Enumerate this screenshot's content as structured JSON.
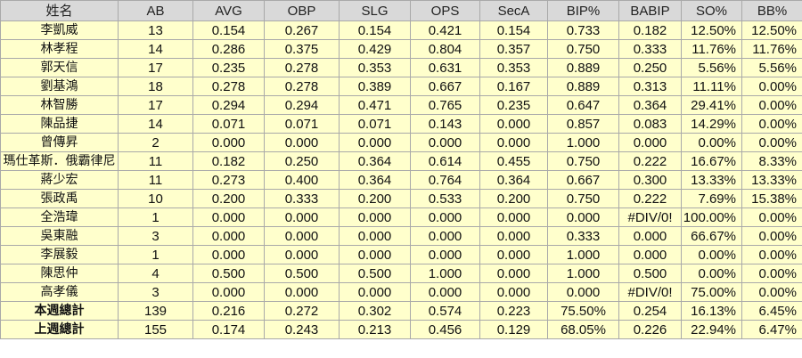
{
  "table": {
    "headers": [
      "姓名",
      "AB",
      "AVG",
      "OBP",
      "SLG",
      "OPS",
      "SecA",
      "BIP%",
      "BABIP",
      "SO%",
      "BB%"
    ],
    "rows": [
      [
        "李凱威",
        "13",
        "0.154",
        "0.267",
        "0.154",
        "0.421",
        "0.154",
        "0.733",
        "0.182",
        "12.50%",
        "12.50%"
      ],
      [
        "林孝程",
        "14",
        "0.286",
        "0.375",
        "0.429",
        "0.804",
        "0.357",
        "0.750",
        "0.333",
        "11.76%",
        "11.76%"
      ],
      [
        "郭天信",
        "17",
        "0.235",
        "0.278",
        "0.353",
        "0.631",
        "0.353",
        "0.889",
        "0.250",
        "5.56%",
        "5.56%"
      ],
      [
        "劉基鴻",
        "18",
        "0.278",
        "0.278",
        "0.389",
        "0.667",
        "0.167",
        "0.889",
        "0.313",
        "11.11%",
        "0.00%"
      ],
      [
        "林智勝",
        "17",
        "0.294",
        "0.294",
        "0.471",
        "0.765",
        "0.235",
        "0.647",
        "0.364",
        "29.41%",
        "0.00%"
      ],
      [
        "陳品捷",
        "14",
        "0.071",
        "0.071",
        "0.071",
        "0.143",
        "0.000",
        "0.857",
        "0.083",
        "14.29%",
        "0.00%"
      ],
      [
        "曾傳昇",
        "2",
        "0.000",
        "0.000",
        "0.000",
        "0.000",
        "0.000",
        "1.000",
        "0.000",
        "0.00%",
        "0.00%"
      ],
      [
        "瑪仕革斯．俄霸律尼",
        "11",
        "0.182",
        "0.250",
        "0.364",
        "0.614",
        "0.455",
        "0.750",
        "0.222",
        "16.67%",
        "8.33%"
      ],
      [
        "蔣少宏",
        "11",
        "0.273",
        "0.400",
        "0.364",
        "0.764",
        "0.364",
        "0.667",
        "0.300",
        "13.33%",
        "13.33%"
      ],
      [
        "張政禹",
        "10",
        "0.200",
        "0.333",
        "0.200",
        "0.533",
        "0.200",
        "0.750",
        "0.222",
        "7.69%",
        "15.38%"
      ],
      [
        "全浩瑋",
        "1",
        "0.000",
        "0.000",
        "0.000",
        "0.000",
        "0.000",
        "0.000",
        "#DIV/0!",
        "100.00%",
        "0.00%"
      ],
      [
        "吳東融",
        "3",
        "0.000",
        "0.000",
        "0.000",
        "0.000",
        "0.000",
        "0.333",
        "0.000",
        "66.67%",
        "0.00%"
      ],
      [
        "李展毅",
        "1",
        "0.000",
        "0.000",
        "0.000",
        "0.000",
        "0.000",
        "1.000",
        "0.000",
        "0.00%",
        "0.00%"
      ],
      [
        "陳思仲",
        "4",
        "0.500",
        "0.500",
        "0.500",
        "1.000",
        "0.000",
        "1.000",
        "0.500",
        "0.00%",
        "0.00%"
      ],
      [
        "高孝儀",
        "3",
        "0.000",
        "0.000",
        "0.000",
        "0.000",
        "0.000",
        "0.000",
        "#DIV/0!",
        "75.00%",
        "0.00%"
      ]
    ],
    "totals": [
      {
        "kind": "this-week",
        "cells": [
          "本週總計",
          "139",
          "0.216",
          "0.272",
          "0.302",
          "0.574",
          "0.223",
          "75.50%",
          "0.254",
          "16.13%",
          "6.45%"
        ]
      },
      {
        "kind": "last-week",
        "cells": [
          "上週總計",
          "155",
          "0.174",
          "0.243",
          "0.213",
          "0.456",
          "0.129",
          "68.05%",
          "0.226",
          "22.94%",
          "6.47%"
        ]
      }
    ]
  },
  "colors": {
    "header_bg": "#d9d9d9",
    "row_bg": "#ffffcc",
    "this_week_bg": "#1f4e8c",
    "last_week_bg": "#9c4d10",
    "border": "#a9a9a9"
  }
}
